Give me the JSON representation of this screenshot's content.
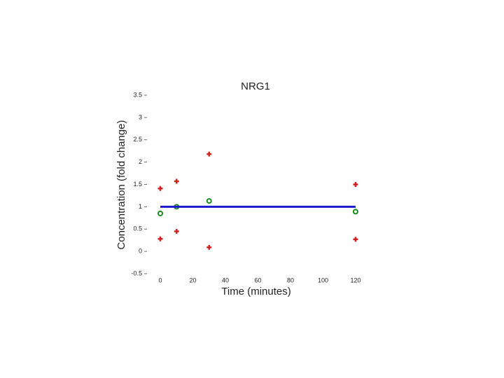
{
  "chart_data": {
    "type": "scatter",
    "title": "NRG1",
    "x_label": "Time (minutes)",
    "y_label": "Concentration (fold change)",
    "xlim": [
      -5,
      130
    ],
    "ylim": [
      -0.5,
      3.5
    ],
    "xticks": [
      0,
      20,
      40,
      60,
      80,
      100,
      120
    ],
    "yticks": [
      3.5,
      3,
      2.5,
      2,
      1.5,
      1,
      0.5,
      0,
      -0.5
    ],
    "grid": false,
    "series": [
      {
        "color": "#d62020",
        "marker": "plus",
        "x": [
          0,
          0,
          10,
          10,
          30,
          30,
          120,
          120
        ],
        "values": [
          1.41,
          0.28,
          1.57,
          0.45,
          2.18,
          0.09,
          1.5,
          0.27
        ]
      },
      {
        "color": "#1a8a1a",
        "marker": "circle",
        "x": [
          0,
          10,
          30,
          120
        ],
        "values": [
          0.85,
          1.0,
          1.13,
          0.89
        ]
      },
      {
        "color": "#1a1acc",
        "marker": "line",
        "x": [
          0,
          120
        ],
        "values": [
          1,
          1
        ]
      }
    ]
  }
}
